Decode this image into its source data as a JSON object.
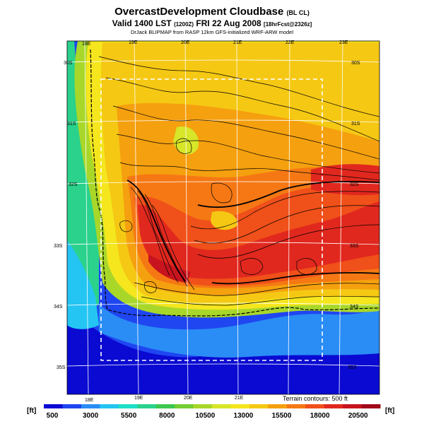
{
  "header": {
    "title": "OvercastDevelopment Cloudbase",
    "title_suffix": "(BL CL)",
    "valid_line": "Valid 1400 LST",
    "valid_utc": "(1200Z)",
    "valid_date": "FRI 22 Aug 2008",
    "forecast_tag": "[18hrFcst@2326z]",
    "credit": "DrJack BLIPMAP from RASP 12km GFS-initialized WRF-ARW model"
  },
  "map": {
    "lon_labels_top": [
      "18E",
      "19E",
      "20E",
      "21E",
      "22E",
      "23E"
    ],
    "lon_labels_bottom": [
      "18E",
      "19E",
      "20E",
      "21E"
    ],
    "lat_labels_left": [
      "30S",
      "31S",
      "32S",
      "33S",
      "34S",
      "35S"
    ],
    "lat_labels_right": [
      "30S",
      "31S",
      "32S",
      "33S",
      "34S",
      "35S"
    ],
    "terrain_note": "Terrain contours: 500 ft"
  },
  "colorbar": {
    "unit_left": "[ft]",
    "unit_right": "[ft]",
    "tick_labels": [
      "500",
      "3000",
      "5500",
      "8000",
      "10500",
      "13000",
      "15500",
      "18000",
      "20500"
    ],
    "colors": [
      "#0a0ad2",
      "#1f46f0",
      "#2a8cf5",
      "#24c5f2",
      "#1ee0c8",
      "#2ad28c",
      "#3cc850",
      "#74cd34",
      "#a8d72a",
      "#d7e628",
      "#f5e61e",
      "#f5c814",
      "#f5a00f",
      "#f57814",
      "#f05019",
      "#e1281e",
      "#c8141e",
      "#a00a1a"
    ]
  }
}
